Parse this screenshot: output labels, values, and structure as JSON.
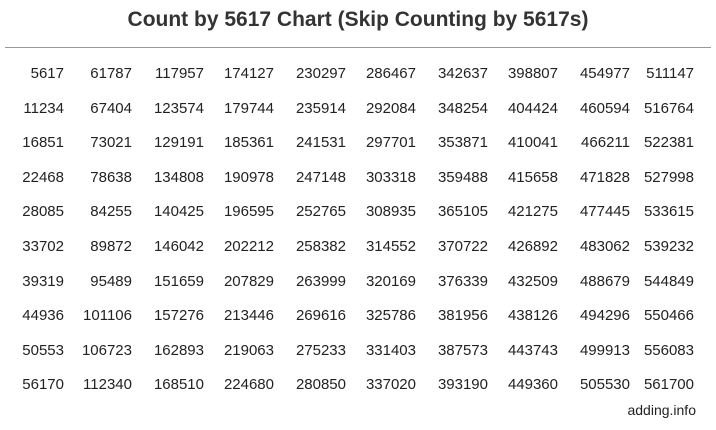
{
  "chart_data": {
    "type": "table",
    "title": "Count by 5617 Chart (Skip Counting by 5617s)",
    "rows": [
      [
        "5617",
        "61787",
        "117957",
        "174127",
        "230297",
        "286467",
        "342637",
        "398807",
        "454977",
        "511147"
      ],
      [
        "11234",
        "67404",
        "123574",
        "179744",
        "235914",
        "292084",
        "348254",
        "404424",
        "460594",
        "516764"
      ],
      [
        "16851",
        "73021",
        "129191",
        "185361",
        "241531",
        "297701",
        "353871",
        "410041",
        "466211",
        "522381"
      ],
      [
        "22468",
        "78638",
        "134808",
        "190978",
        "247148",
        "303318",
        "359488",
        "415658",
        "471828",
        "527998"
      ],
      [
        "28085",
        "84255",
        "140425",
        "196595",
        "252765",
        "308935",
        "365105",
        "421275",
        "477445",
        "533615"
      ],
      [
        "33702",
        "89872",
        "146042",
        "202212",
        "258382",
        "314552",
        "370722",
        "426892",
        "483062",
        "539232"
      ],
      [
        "39319",
        "95489",
        "151659",
        "207829",
        "263999",
        "320169",
        "376339",
        "432509",
        "488679",
        "544849"
      ],
      [
        "44936",
        "101106",
        "157276",
        "213446",
        "269616",
        "325786",
        "381956",
        "438126",
        "494296",
        "550466"
      ],
      [
        "50553",
        "106723",
        "162893",
        "219063",
        "275233",
        "331403",
        "387573",
        "443743",
        "499913",
        "556083"
      ],
      [
        "56170",
        "112340",
        "168510",
        "224680",
        "280850",
        "337020",
        "393190",
        "449360",
        "505530",
        "561700"
      ]
    ]
  },
  "footer": "adding.info"
}
